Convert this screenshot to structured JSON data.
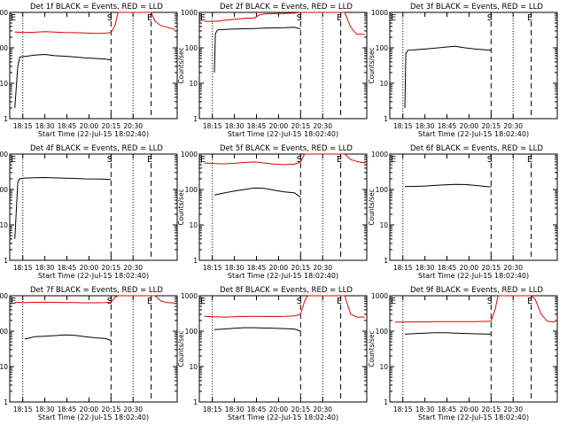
{
  "panel_title_suffix": "BLACK = Events, RED = LLD",
  "ylabel": "Counts/sec",
  "xlabel": "Start Time (22-Jul-15 18:02:40)",
  "xticks": [
    "18:15",
    "18:30",
    "18:45",
    "20:00",
    "20:15",
    "20:30"
  ],
  "yticks": [
    "1",
    "10",
    "100",
    "1000"
  ],
  "marker_labels": [
    "E",
    "S",
    "E"
  ],
  "colors": {
    "events": "#000000",
    "lld": "#dd0000"
  },
  "chart_data": [
    {
      "type": "line",
      "title": "Det 1f",
      "ylim": [
        1,
        1000
      ],
      "yscale": "log",
      "series": [
        {
          "name": "BLACK = Events",
          "color": "#000000",
          "x": [
            0,
            0.3,
            0.5,
            1,
            2,
            3,
            4,
            5,
            6,
            7,
            8,
            9,
            9.6
          ],
          "y": [
            2,
            30,
            55,
            57,
            62,
            65,
            60,
            58,
            55,
            52,
            50,
            48,
            46
          ]
        },
        {
          "name": "RED = LLD",
          "color": "#dd0000",
          "x": [
            0,
            1,
            2,
            3,
            4,
            5,
            6,
            7,
            8,
            9,
            9.6,
            10,
            10.3,
            10.6,
            11,
            13.6,
            14,
            14.6,
            15.2,
            16
          ],
          "y": [
            280,
            270,
            275,
            285,
            278,
            270,
            268,
            262,
            255,
            258,
            270,
            420,
            1000,
            1000,
            1000,
            1000,
            560,
            420,
            380,
            330
          ]
        }
      ]
    },
    {
      "type": "line",
      "title": "Det 2f",
      "ylim": [
        1,
        1000
      ],
      "yscale": "log",
      "series": [
        {
          "name": "BLACK = Events",
          "color": "#000000",
          "x": [
            1,
            1.1,
            1.3,
            2,
            3,
            4,
            5,
            6,
            7,
            8,
            9,
            9.6
          ],
          "y": [
            20,
            250,
            320,
            330,
            340,
            345,
            350,
            360,
            365,
            370,
            380,
            340
          ]
        },
        {
          "name": "RED = LLD",
          "color": "#dd0000",
          "x": [
            0,
            1,
            1.5,
            2,
            3,
            4,
            5,
            5.5,
            6,
            7,
            8,
            9,
            9.6,
            10,
            10.3,
            10.6,
            13.6,
            14,
            14.6,
            15.2,
            16
          ],
          "y": [
            560,
            560,
            570,
            600,
            640,
            680,
            700,
            850,
            900,
            920,
            940,
            960,
            1000,
            1000,
            1000,
            1000,
            1000,
            1000,
            380,
            240,
            240
          ]
        }
      ]
    },
    {
      "type": "line",
      "title": "Det 3f",
      "ylim": [
        1,
        1000
      ],
      "yscale": "log",
      "series": [
        {
          "name": "BLACK = Events",
          "color": "#000000",
          "x": [
            1,
            1.1,
            1.3,
            2,
            3,
            4,
            5,
            6,
            7,
            8,
            9,
            9.6
          ],
          "y": [
            2,
            70,
            85,
            88,
            92,
            98,
            105,
            110,
            100,
            92,
            88,
            86
          ]
        }
      ]
    },
    {
      "type": "line",
      "title": "Det 4f",
      "ylim": [
        1,
        1000
      ],
      "yscale": "log",
      "series": [
        {
          "name": "BLACK = Events",
          "color": "#000000",
          "x": [
            0,
            0.3,
            0.5,
            1,
            2,
            3,
            4,
            5,
            6,
            7,
            8,
            9,
            9.6
          ],
          "y": [
            4,
            160,
            200,
            210,
            215,
            218,
            212,
            208,
            205,
            200,
            198,
            195,
            190
          ]
        }
      ]
    },
    {
      "type": "line",
      "title": "Det 5f",
      "ylim": [
        1,
        1000
      ],
      "yscale": "log",
      "series": [
        {
          "name": "BLACK = Events",
          "color": "#000000",
          "x": [
            1,
            2,
            3,
            4,
            5,
            6,
            7,
            8,
            9,
            9.6
          ],
          "y": [
            70,
            80,
            90,
            100,
            110,
            108,
            95,
            85,
            80,
            60
          ]
        },
        {
          "name": "RED = LLD",
          "color": "#dd0000",
          "x": [
            0,
            1,
            2,
            3,
            4,
            5,
            6,
            7,
            8,
            9,
            9.6,
            10,
            10.3,
            10.6,
            13.6,
            14,
            14.6,
            15.2,
            16
          ],
          "y": [
            560,
            540,
            530,
            550,
            580,
            600,
            560,
            520,
            500,
            520,
            600,
            1000,
            1000,
            1000,
            1000,
            1000,
            700,
            620,
            560
          ]
        }
      ]
    },
    {
      "type": "line",
      "title": "Det 6f",
      "ylim": [
        1,
        1000
      ],
      "yscale": "log",
      "series": [
        {
          "name": "BLACK = Events",
          "color": "#000000",
          "x": [
            1,
            2,
            3,
            4,
            5,
            6,
            7,
            8,
            9,
            9.6
          ],
          "y": [
            120,
            122,
            125,
            130,
            135,
            140,
            138,
            130,
            122,
            118
          ]
        }
      ]
    },
    {
      "type": "line",
      "title": "Det 7f",
      "ylim": [
        1,
        1000
      ],
      "yscale": "log",
      "series": [
        {
          "name": "BLACK = Events",
          "color": "#000000",
          "x": [
            1,
            2,
            3,
            4,
            5,
            6,
            7,
            8,
            9,
            9.6
          ],
          "y": [
            60,
            70,
            72,
            75,
            78,
            76,
            70,
            65,
            62,
            55
          ]
        },
        {
          "name": "RED = LLD",
          "color": "#dd0000",
          "x": [
            0,
            1,
            2,
            3,
            4,
            5,
            6,
            7,
            8,
            9,
            9.6,
            10,
            10.3,
            10.6,
            13.6,
            14,
            14.6,
            15.2,
            16
          ],
          "y": [
            650,
            640,
            650,
            660,
            650,
            640,
            640,
            630,
            630,
            640,
            660,
            900,
            1000,
            1000,
            1000,
            1000,
            700,
            640,
            620
          ]
        }
      ]
    },
    {
      "type": "line",
      "title": "Det 8f",
      "ylim": [
        1,
        1000
      ],
      "yscale": "log",
      "series": [
        {
          "name": "BLACK = Events",
          "color": "#000000",
          "x": [
            1,
            2,
            3,
            4,
            5,
            6,
            7,
            8,
            9,
            9.6
          ],
          "y": [
            110,
            115,
            120,
            125,
            125,
            122,
            120,
            118,
            115,
            100
          ]
        },
        {
          "name": "RED = LLD",
          "color": "#dd0000",
          "x": [
            0,
            1,
            2,
            3,
            4,
            5,
            6,
            7,
            8,
            9,
            9.6,
            10,
            10.3,
            10.6,
            13.6,
            14,
            14.6,
            15.2,
            16
          ],
          "y": [
            260,
            255,
            250,
            255,
            260,
            262,
            260,
            258,
            262,
            270,
            300,
            700,
            1000,
            1000,
            1000,
            1000,
            300,
            250,
            250
          ]
        }
      ]
    },
    {
      "type": "line",
      "title": "Det 9f",
      "ylim": [
        1,
        1000
      ],
      "yscale": "log",
      "series": [
        {
          "name": "BLACK = Events",
          "color": "#000000",
          "x": [
            1,
            2,
            3,
            4,
            5,
            6,
            7,
            8,
            9,
            9.6
          ],
          "y": [
            82,
            85,
            88,
            90,
            90,
            88,
            86,
            84,
            83,
            82
          ]
        },
        {
          "name": "RED = LLD",
          "color": "#dd0000",
          "x": [
            0,
            1,
            2,
            3,
            4,
            5,
            6,
            7,
            8,
            9,
            9.6,
            10,
            10.3,
            10.6,
            13.6,
            14,
            14.6,
            15.2,
            16
          ],
          "y": [
            180,
            182,
            182,
            182,
            185,
            185,
            185,
            186,
            186,
            188,
            190,
            400,
            1000,
            1000,
            1000,
            800,
            300,
            190,
            180
          ]
        }
      ]
    }
  ]
}
